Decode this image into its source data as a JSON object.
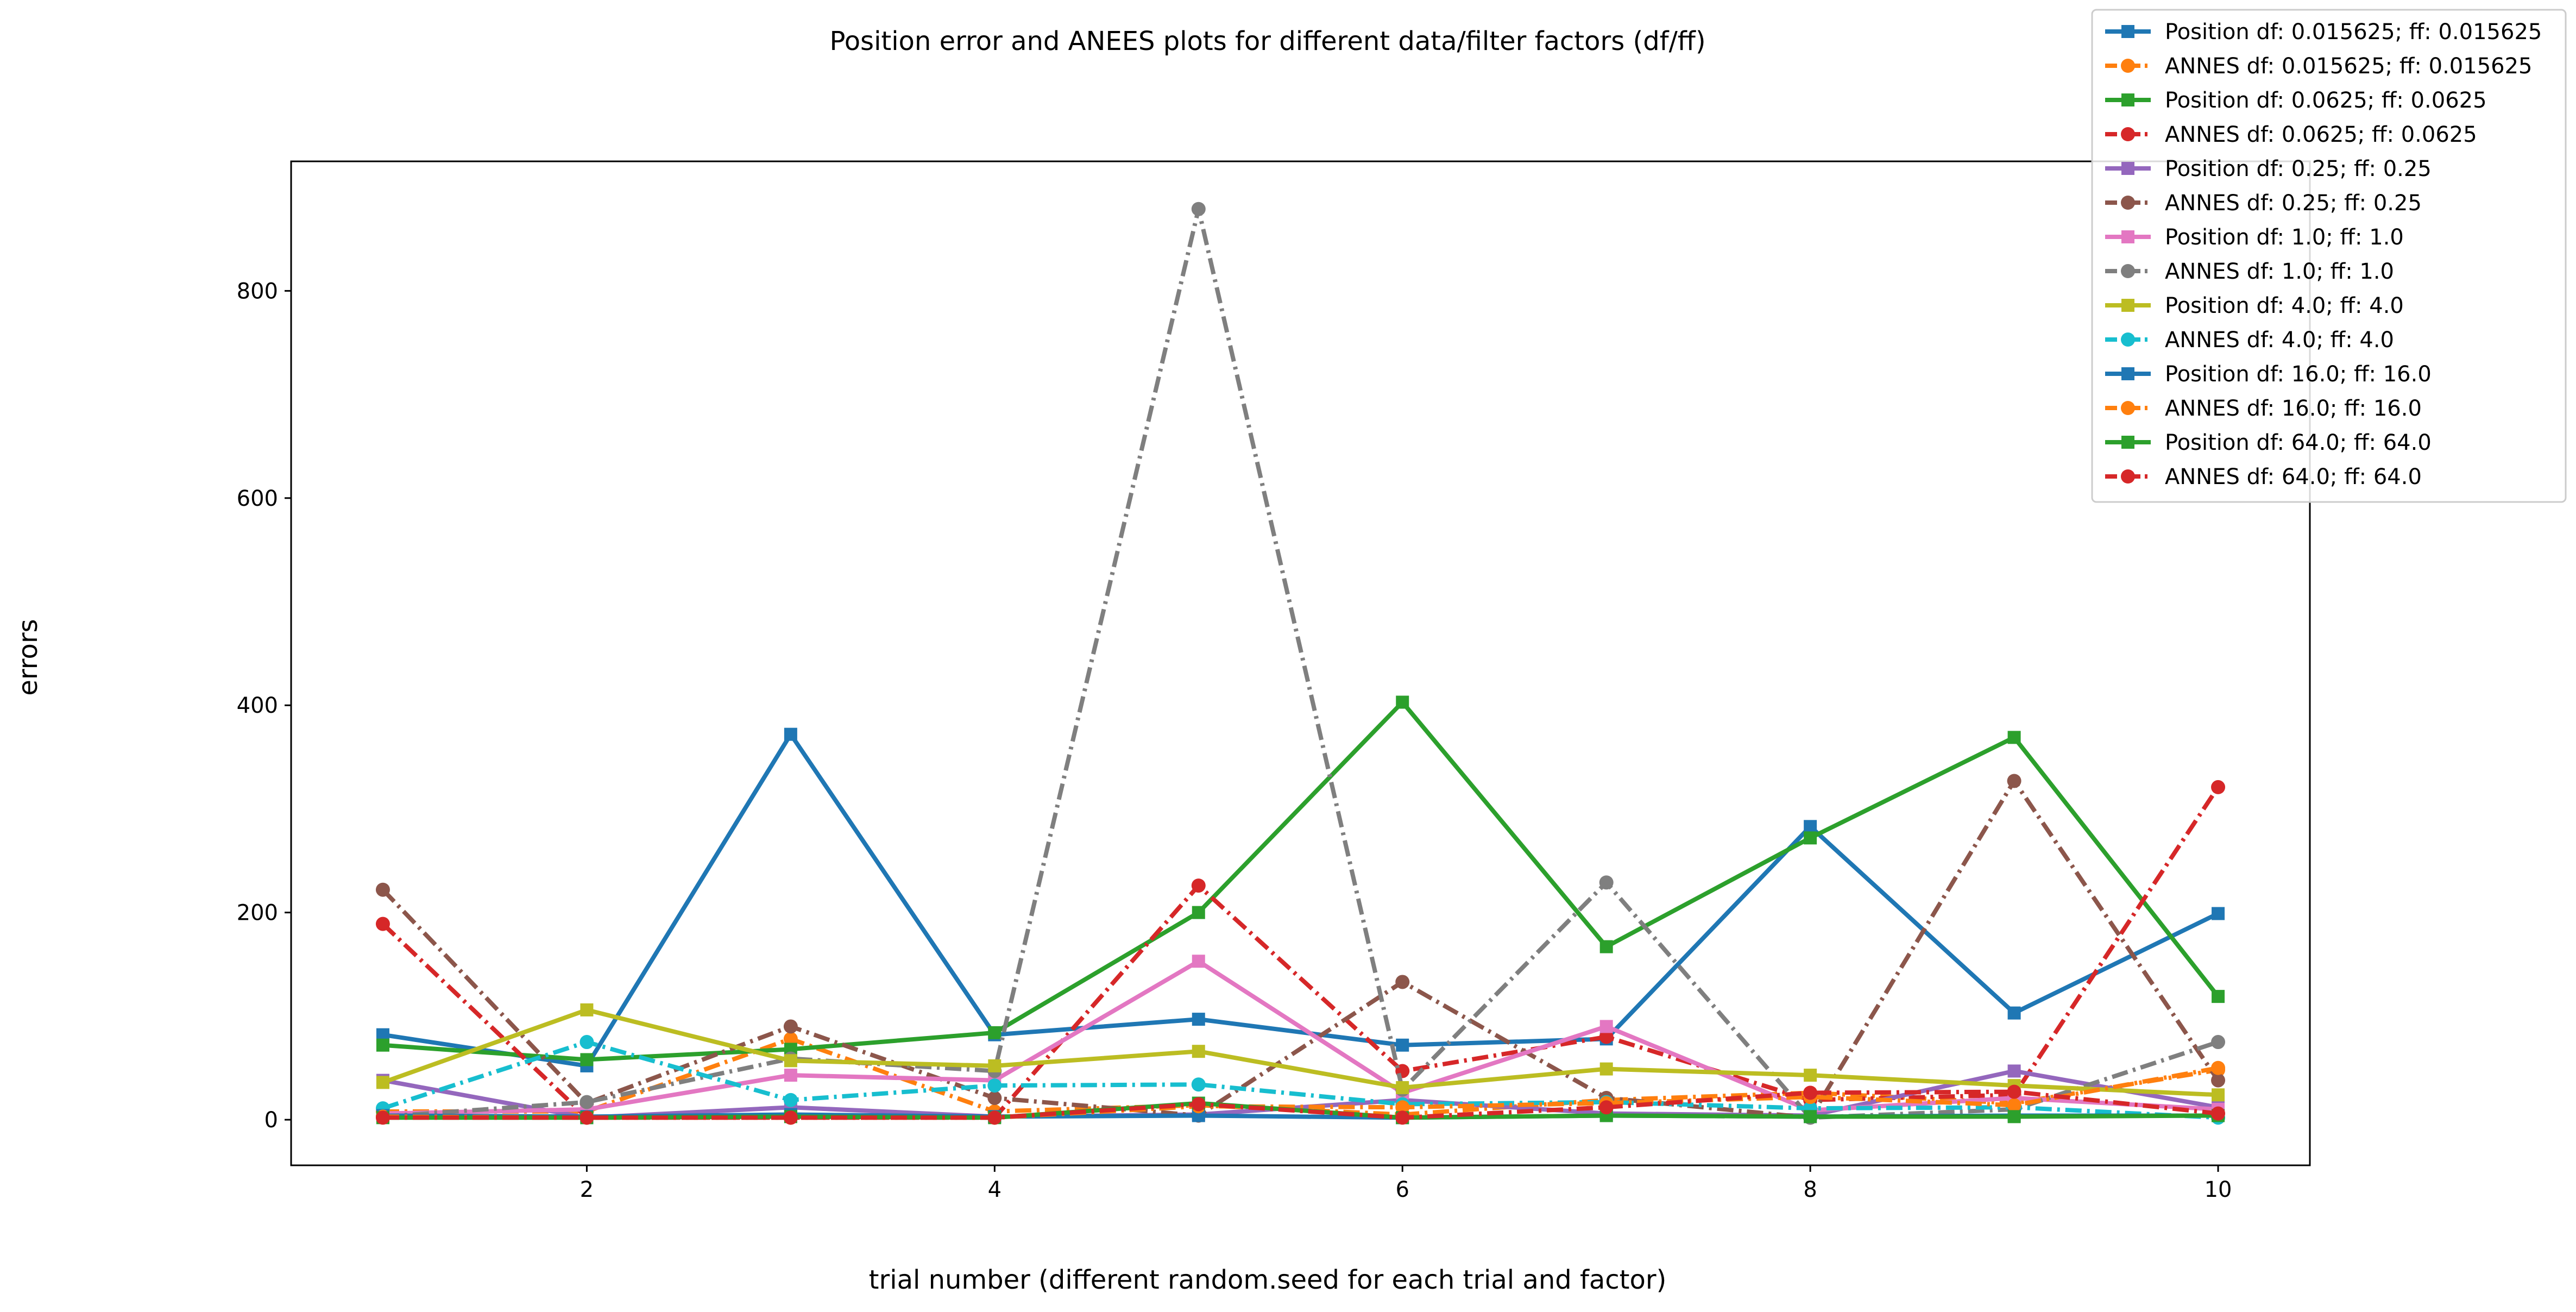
{
  "chart_data": {
    "type": "line",
    "title": "Position error and ANEES plots for different data/filter factors (df/ff)",
    "xlabel": "trial number (different random.seed for each trial and factor)",
    "ylabel": "errors",
    "xlim": [
      0.55,
      10.45
    ],
    "ylim": [
      -44,
      925
    ],
    "x_ticks": [
      2,
      4,
      6,
      8,
      10
    ],
    "y_ticks": [
      0,
      200,
      400,
      600,
      800
    ],
    "grid": false,
    "legend_position": "top-right",
    "x": [
      1,
      2,
      3,
      4,
      5,
      6,
      7,
      8,
      9,
      10
    ],
    "series": [
      {
        "name": "Position df: 0.015625; ff: 0.015625",
        "color": "#1f77b4",
        "style": "solid",
        "marker": "square",
        "values": [
          82,
          52,
          372,
          82,
          97,
          72,
          78,
          283,
          103,
          199
        ]
      },
      {
        "name": "ANNES df: 0.015625; ff: 0.015625",
        "color": "#ff7f0e",
        "style": "dashdot",
        "marker": "circle",
        "values": [
          8,
          8,
          78,
          8,
          14,
          5,
          19,
          26,
          16,
          48
        ]
      },
      {
        "name": "Position df: 0.0625; ff: 0.0625",
        "color": "#2ca02c",
        "style": "solid",
        "marker": "square",
        "values": [
          72,
          58,
          68,
          84,
          200,
          403,
          167,
          272,
          369,
          119
        ]
      },
      {
        "name": "ANNES df: 0.0625; ff: 0.0625",
        "color": "#d62728",
        "style": "dashdot",
        "marker": "circle",
        "values": [
          189,
          2,
          2,
          2,
          226,
          47,
          80,
          19,
          24,
          321
        ]
      },
      {
        "name": "Position df: 0.25; ff: 0.25",
        "color": "#9467bd",
        "style": "solid",
        "marker": "square",
        "values": [
          38,
          2,
          12,
          3,
          5,
          19,
          6,
          4,
          47,
          12
        ]
      },
      {
        "name": "ANNES df: 0.25; ff: 0.25",
        "color": "#8c564b",
        "style": "dashdot",
        "marker": "circle",
        "values": [
          222,
          16,
          90,
          21,
          4,
          133,
          21,
          2,
          327,
          38
        ]
      },
      {
        "name": "Position df: 1.0; ff: 1.0",
        "color": "#e377c2",
        "style": "solid",
        "marker": "square",
        "values": [
          6,
          10,
          43,
          38,
          153,
          26,
          90,
          9,
          21,
          10
        ]
      },
      {
        "name": "ANNES df: 1.0; ff: 1.0",
        "color": "#7f7f7f",
        "style": "dashdot",
        "marker": "circle",
        "values": [
          3,
          17,
          59,
          47,
          879,
          29,
          229,
          2,
          10,
          75
        ]
      },
      {
        "name": "Position df: 4.0; ff: 4.0",
        "color": "#bcbd22",
        "style": "solid",
        "marker": "square",
        "values": [
          36,
          106,
          57,
          52,
          66,
          31,
          49,
          43,
          33,
          24
        ]
      },
      {
        "name": "ANNES df: 4.0; ff: 4.0",
        "color": "#17becf",
        "style": "dashdot",
        "marker": "circle",
        "values": [
          11,
          75,
          19,
          33,
          34,
          15,
          17,
          11,
          12,
          2
        ]
      },
      {
        "name": "Position df: 16.0; ff: 16.0",
        "color": "#1f77b4",
        "style": "solid",
        "marker": "square",
        "values": [
          4,
          3,
          5,
          3,
          4,
          2,
          4,
          3,
          4,
          4
        ]
      },
      {
        "name": "ANNES df: 16.0; ff: 16.0",
        "color": "#ff7f0e",
        "style": "dashdot",
        "marker": "circle",
        "values": [
          3,
          2,
          2,
          2,
          13,
          12,
          16,
          22,
          14,
          50
        ]
      },
      {
        "name": "Position df: 64.0; ff: 64.0",
        "color": "#2ca02c",
        "style": "solid",
        "marker": "square",
        "values": [
          2,
          2,
          3,
          2,
          16,
          2,
          4,
          3,
          3,
          4
        ]
      },
      {
        "name": "ANNES df: 64.0; ff: 64.0",
        "color": "#d62728",
        "style": "dashdot",
        "marker": "circle",
        "values": [
          2,
          2,
          2,
          2,
          15,
          2,
          12,
          26,
          27,
          6
        ]
      }
    ]
  }
}
